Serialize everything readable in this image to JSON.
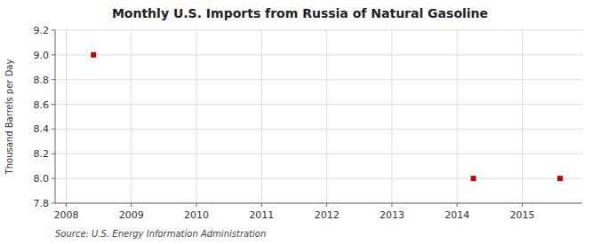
{
  "chart_data": {
    "type": "scatter",
    "title": "Monthly U.S. Imports from Russia of Natural Gasoline",
    "y_label": "Thousand Barrels per Day",
    "source": "Source: U.S. Energy Information Administration",
    "x": [
      2008.42,
      2014.25,
      2015.58
    ],
    "values": [
      9.0,
      8.0,
      8.0
    ],
    "color": "#cc0000",
    "marker": "square",
    "xlim": [
      2007.83,
      2015.92
    ],
    "ylim": [
      7.8,
      9.2
    ],
    "xticks": [
      2008,
      2009,
      2010,
      2011,
      2012,
      2013,
      2014,
      2015
    ],
    "yticks": [
      7.8,
      {
        "value": 8.0,
        "label": "8.0"
      },
      8.2,
      8.4,
      8.6,
      8.8,
      {
        "value": 9.0,
        "label": "9.0"
      },
      9.2
    ],
    "grid": true
  }
}
